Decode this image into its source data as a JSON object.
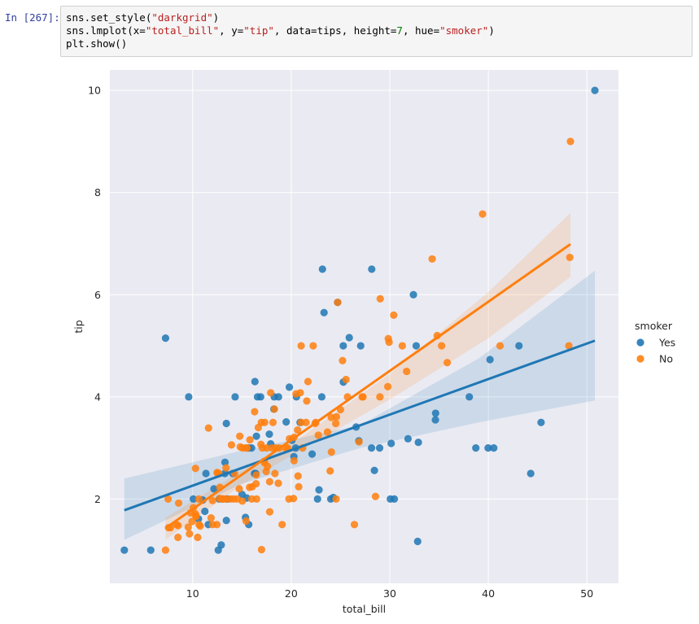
{
  "cell": {
    "prompt": "In [267]:",
    "lines": [
      "sns.set_style(\"darkgrid\")",
      "sns.lmplot(x=\"total_bill\", y=\"tip\", data=tips, height=7, hue=\"smoker\")",
      "plt.show()"
    ]
  },
  "colors": {
    "background": "#eaeaf2",
    "grid": "#ffffff",
    "yes": "#1f77b4",
    "no": "#ff7f0e"
  },
  "chart_data": {
    "type": "scatter",
    "title": "",
    "xlabel": "total_bill",
    "ylabel": "tip",
    "xlim": [
      1.6,
      53.2
    ],
    "ylim": [
      0.35,
      10.4
    ],
    "xticks": [
      10,
      20,
      30,
      40,
      50
    ],
    "yticks": [
      2,
      4,
      6,
      8,
      10
    ],
    "grid": true,
    "legend": {
      "title": "smoker",
      "placement": "center-right"
    },
    "series": [
      {
        "name": "Yes",
        "color": "#1f77b4",
        "regression": {
          "x_range": [
            3.07,
            50.81
          ],
          "y_start": 1.78,
          "y_end": 5.1
        },
        "ci_band": {
          "x": [
            3.07,
            15,
            27,
            39,
            50.81
          ],
          "lower": [
            1.2,
            2.3,
            3.0,
            3.5,
            3.93
          ],
          "upper": [
            2.4,
            2.95,
            3.45,
            4.75,
            6.47
          ]
        },
        "points": [
          [
            3.07,
            1.0
          ],
          [
            5.75,
            1.0
          ],
          [
            7.25,
            5.15
          ],
          [
            9.6,
            4.0
          ],
          [
            10.07,
            2.0
          ],
          [
            10.59,
            1.61
          ],
          [
            11.02,
            1.98
          ],
          [
            11.24,
            1.76
          ],
          [
            11.35,
            2.5
          ],
          [
            11.59,
            1.5
          ],
          [
            12.16,
            2.2
          ],
          [
            12.6,
            1.0
          ],
          [
            12.69,
            2.0
          ],
          [
            12.9,
            1.1
          ],
          [
            13.0,
            2.0
          ],
          [
            13.27,
            2.5
          ],
          [
            13.28,
            2.72
          ],
          [
            13.42,
            3.48
          ],
          [
            13.42,
            1.58
          ],
          [
            13.51,
            2.0
          ],
          [
            14.07,
            2.5
          ],
          [
            14.31,
            4.0
          ],
          [
            15.01,
            2.09
          ],
          [
            15.36,
            1.64
          ],
          [
            15.69,
            3.0
          ],
          [
            15.69,
            1.5
          ],
          [
            15.48,
            2.02
          ],
          [
            15.98,
            3.0
          ],
          [
            16.27,
            2.5
          ],
          [
            16.32,
            4.3
          ],
          [
            16.4,
            2.5
          ],
          [
            16.47,
            3.23
          ],
          [
            16.58,
            4.0
          ],
          [
            16.9,
            4.0
          ],
          [
            17.78,
            3.27
          ],
          [
            17.92,
            3.08
          ],
          [
            18.24,
            3.76
          ],
          [
            18.28,
            4.0
          ],
          [
            18.71,
            4.0
          ],
          [
            19.49,
            3.51
          ],
          [
            19.81,
            4.19
          ],
          [
            20.08,
            3.15
          ],
          [
            20.27,
            2.83
          ],
          [
            20.45,
            3.0
          ],
          [
            20.53,
            4.0
          ],
          [
            20.9,
            3.5
          ],
          [
            22.12,
            2.88
          ],
          [
            22.67,
            2.0
          ],
          [
            22.82,
            2.18
          ],
          [
            23.1,
            4.0
          ],
          [
            23.17,
            6.5
          ],
          [
            23.33,
            5.65
          ],
          [
            24.01,
            2.0
          ],
          [
            24.27,
            2.03
          ],
          [
            24.71,
            5.85
          ],
          [
            25.28,
            5.0
          ],
          [
            25.29,
            4.29
          ],
          [
            25.89,
            5.16
          ],
          [
            26.59,
            3.41
          ],
          [
            26.86,
            3.14
          ],
          [
            27.05,
            5.0
          ],
          [
            28.15,
            3.0
          ],
          [
            28.17,
            6.5
          ],
          [
            28.44,
            2.56
          ],
          [
            28.97,
            3.0
          ],
          [
            30.06,
            2.0
          ],
          [
            30.14,
            3.09
          ],
          [
            30.46,
            2.0
          ],
          [
            32.4,
            6.0
          ],
          [
            32.83,
            1.17
          ],
          [
            32.9,
            3.11
          ],
          [
            32.68,
            5.0
          ],
          [
            34.63,
            3.55
          ],
          [
            34.65,
            3.68
          ],
          [
            38.07,
            4.0
          ],
          [
            39.98,
            3.0
          ],
          [
            40.17,
            4.73
          ],
          [
            40.55,
            3.0
          ],
          [
            43.11,
            5.0
          ],
          [
            44.3,
            2.5
          ],
          [
            45.35,
            3.5
          ],
          [
            50.81,
            10.0
          ],
          [
            38.73,
            3.0
          ],
          [
            31.85,
            3.18
          ]
        ]
      },
      {
        "name": "No",
        "color": "#ff7f0e",
        "regression": {
          "x_range": [
            7.25,
            48.33
          ],
          "y_start": 1.43,
          "y_end": 6.99
        },
        "ci_band": {
          "x": [
            7.25,
            15,
            20,
            30,
            40,
            48.33
          ],
          "lower": [
            1.2,
            2.28,
            2.85,
            3.95,
            5.15,
            6.35
          ],
          "upper": [
            1.63,
            2.56,
            3.07,
            4.45,
            6.05,
            7.6
          ]
        },
        "points": [
          [
            7.25,
            1.0
          ],
          [
            7.51,
            2.0
          ],
          [
            7.56,
            1.44
          ],
          [
            7.74,
            1.44
          ],
          [
            8.52,
            1.48
          ],
          [
            8.35,
            1.5
          ],
          [
            8.51,
            1.25
          ],
          [
            8.58,
            1.92
          ],
          [
            9.55,
            1.45
          ],
          [
            9.68,
            1.32
          ],
          [
            9.78,
            1.73
          ],
          [
            9.94,
            1.56
          ],
          [
            10.07,
            1.83
          ],
          [
            10.27,
            1.71
          ],
          [
            10.29,
            2.6
          ],
          [
            10.33,
            1.67
          ],
          [
            10.34,
            1.66
          ],
          [
            10.51,
            1.25
          ],
          [
            10.63,
            2.0
          ],
          [
            10.65,
            1.5
          ],
          [
            10.77,
            1.47
          ],
          [
            11.61,
            3.39
          ],
          [
            11.87,
            1.63
          ],
          [
            12.02,
            1.97
          ],
          [
            12.03,
            1.5
          ],
          [
            12.46,
            1.5
          ],
          [
            12.48,
            2.52
          ],
          [
            12.54,
            2.5
          ],
          [
            12.66,
            2.5
          ],
          [
            12.74,
            2.01
          ],
          [
            12.76,
            2.23
          ],
          [
            13.03,
            2.0
          ],
          [
            13.13,
            2.0
          ],
          [
            13.37,
            2.0
          ],
          [
            13.39,
            2.61
          ],
          [
            13.81,
            2.0
          ],
          [
            13.94,
            3.06
          ],
          [
            14.15,
            2.0
          ],
          [
            14.26,
            2.5
          ],
          [
            14.52,
            2.0
          ],
          [
            14.73,
            2.2
          ],
          [
            14.78,
            3.23
          ],
          [
            14.83,
            3.02
          ],
          [
            15.04,
            1.96
          ],
          [
            15.06,
            3.0
          ],
          [
            15.38,
            3.0
          ],
          [
            15.42,
            1.57
          ],
          [
            15.53,
            3.0
          ],
          [
            15.77,
            2.23
          ],
          [
            15.81,
            3.16
          ],
          [
            16.0,
            2.0
          ],
          [
            16.04,
            2.24
          ],
          [
            16.29,
            3.71
          ],
          [
            16.43,
            2.3
          ],
          [
            16.45,
            2.47
          ],
          [
            16.49,
            2.0
          ],
          [
            16.66,
            3.4
          ],
          [
            16.93,
            3.07
          ],
          [
            16.97,
            3.5
          ],
          [
            17.07,
            3.0
          ],
          [
            17.26,
            2.74
          ],
          [
            17.29,
            2.71
          ],
          [
            17.31,
            3.5
          ],
          [
            17.46,
            2.54
          ],
          [
            17.51,
            3.0
          ],
          [
            17.59,
            2.64
          ],
          [
            17.81,
            2.34
          ],
          [
            17.82,
            1.75
          ],
          [
            17.92,
            4.08
          ],
          [
            18.04,
            3.0
          ],
          [
            18.15,
            3.5
          ],
          [
            18.29,
            3.76
          ],
          [
            18.35,
            2.5
          ],
          [
            18.43,
            3.0
          ],
          [
            18.69,
            2.31
          ],
          [
            18.78,
            3.0
          ],
          [
            19.08,
            1.5
          ],
          [
            19.44,
            3.0
          ],
          [
            19.65,
            3.0
          ],
          [
            19.77,
            2.0
          ],
          [
            19.82,
            3.18
          ],
          [
            20.23,
            2.01
          ],
          [
            20.29,
            2.75
          ],
          [
            20.29,
            3.21
          ],
          [
            20.49,
            4.06
          ],
          [
            20.65,
            3.35
          ],
          [
            20.69,
            2.45
          ],
          [
            20.92,
            4.08
          ],
          [
            21.01,
            3.5
          ],
          [
            21.16,
            3.0
          ],
          [
            21.5,
            3.5
          ],
          [
            21.58,
            3.92
          ],
          [
            21.7,
            4.3
          ],
          [
            22.23,
            5.0
          ],
          [
            22.42,
            3.48
          ],
          [
            22.49,
            3.5
          ],
          [
            22.75,
            3.25
          ],
          [
            23.68,
            3.31
          ],
          [
            24.06,
            3.6
          ],
          [
            24.08,
            2.92
          ],
          [
            24.52,
            3.48
          ],
          [
            24.55,
            2.0
          ],
          [
            24.59,
            3.61
          ],
          [
            25.0,
            3.75
          ],
          [
            25.56,
            4.34
          ],
          [
            25.71,
            4.0
          ],
          [
            26.41,
            1.5
          ],
          [
            26.88,
            3.12
          ],
          [
            27.2,
            4.0
          ],
          [
            27.28,
            4.0
          ],
          [
            28.55,
            2.05
          ],
          [
            29.03,
            5.92
          ],
          [
            29.8,
            4.2
          ],
          [
            29.85,
            5.14
          ],
          [
            29.93,
            5.07
          ],
          [
            30.4,
            5.6
          ],
          [
            31.27,
            5.0
          ],
          [
            31.71,
            4.5
          ],
          [
            34.3,
            6.7
          ],
          [
            34.81,
            5.2
          ],
          [
            35.26,
            5.0
          ],
          [
            35.83,
            4.67
          ],
          [
            39.42,
            7.58
          ],
          [
            41.19,
            5.0
          ],
          [
            48.17,
            5.0
          ],
          [
            48.27,
            6.73
          ],
          [
            48.33,
            9.0
          ],
          [
            20.76,
            2.24
          ],
          [
            21.01,
            5.0
          ],
          [
            23.95,
            2.55
          ],
          [
            24.71,
            5.85
          ],
          [
            25.21,
            4.71
          ],
          [
            29.0,
            4.0
          ],
          [
            16.99,
            1.01
          ]
        ]
      }
    ]
  }
}
